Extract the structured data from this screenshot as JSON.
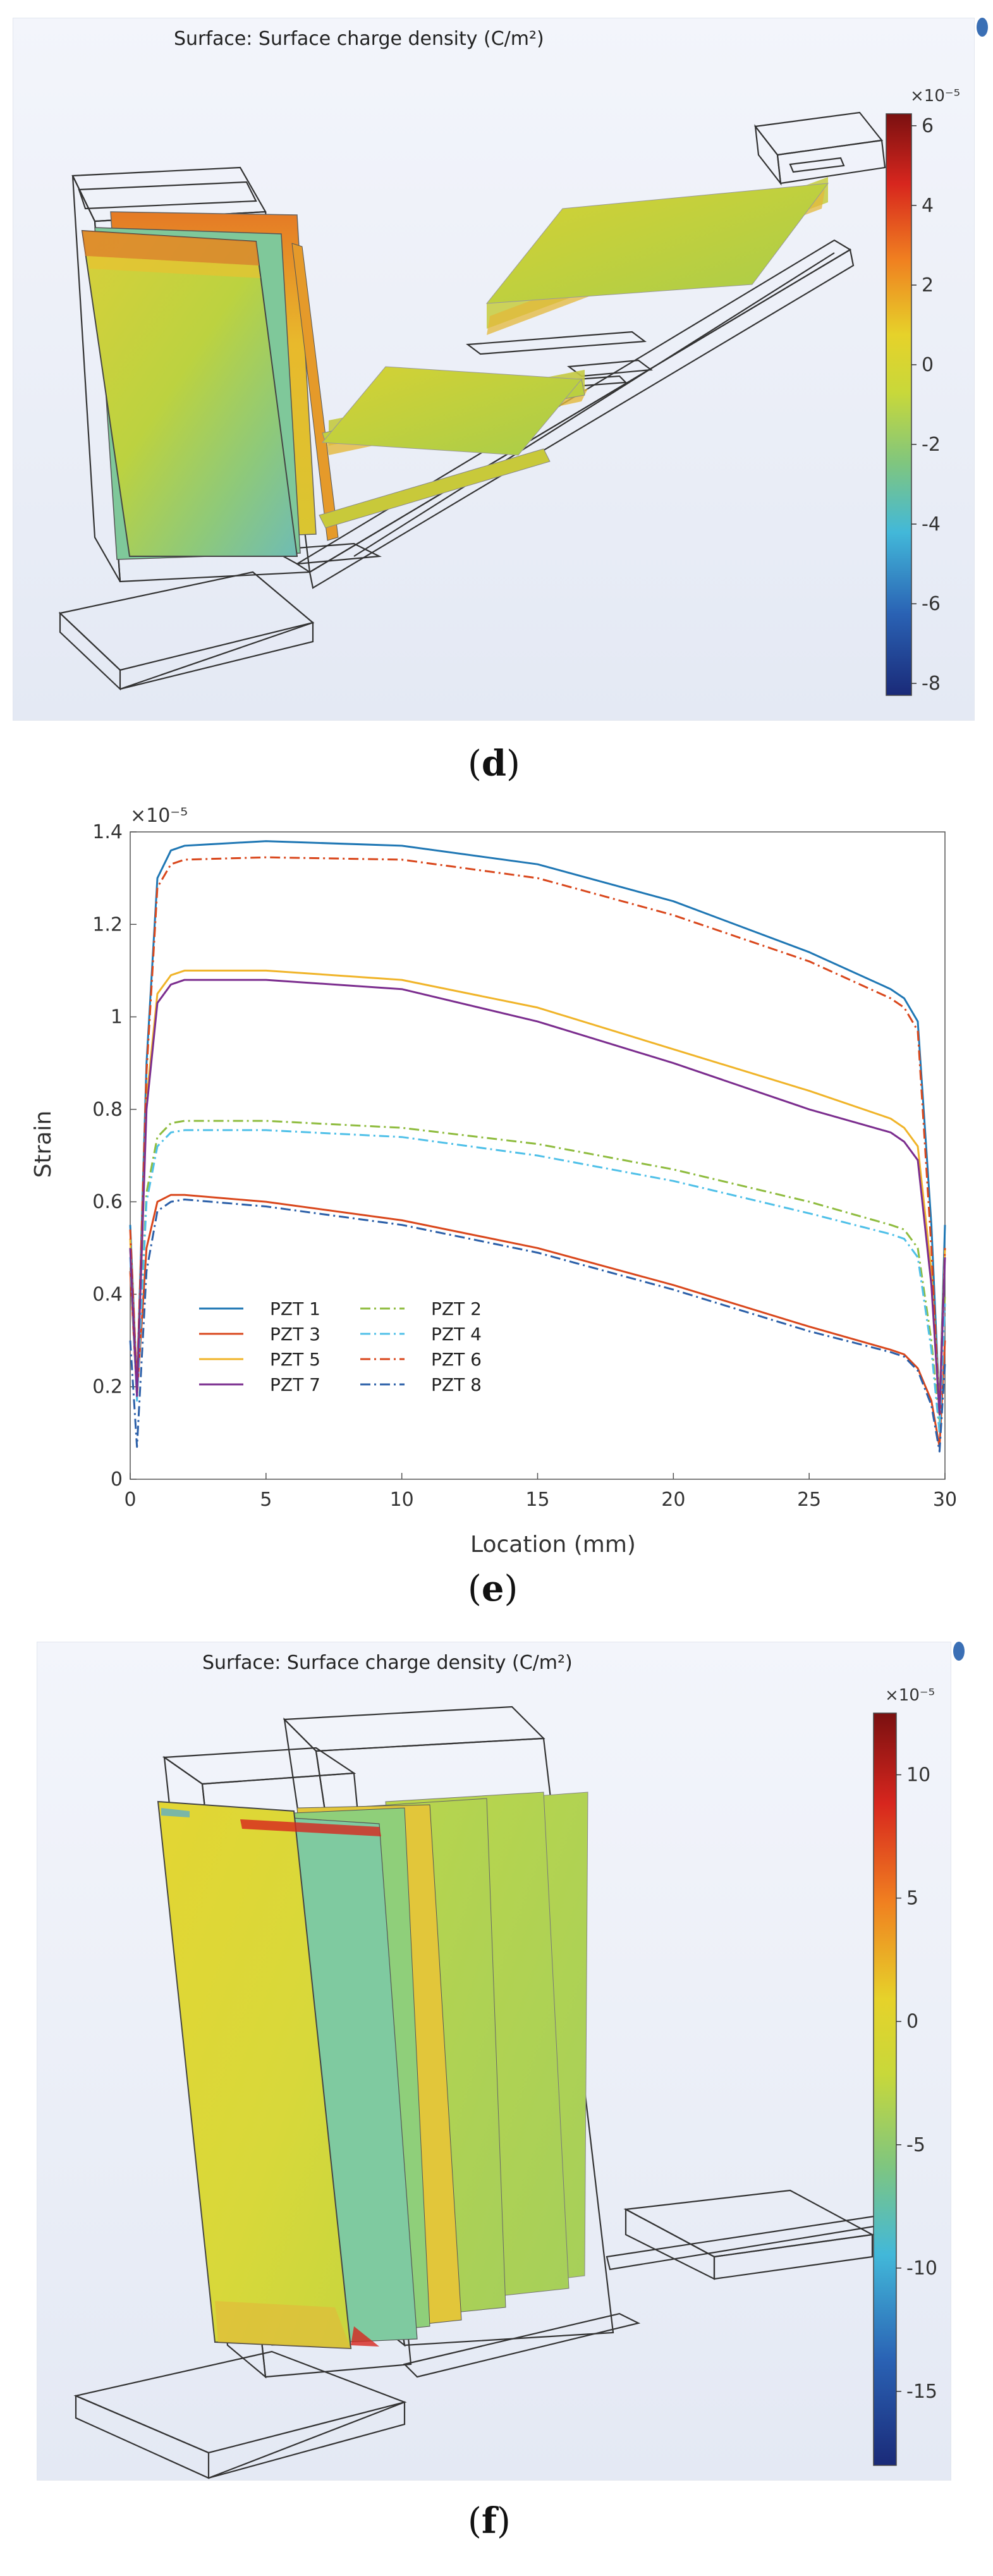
{
  "figure": {
    "panel_d": {
      "label": "d",
      "title": "Surface: Surface charge density (C/m²)",
      "colorbar": {
        "scale": "×10⁻⁵",
        "max_value": 6.3,
        "min_value": -8.3,
        "ticks": [
          "6",
          "4",
          "2",
          "0",
          "-2",
          "-4",
          "-6",
          "-8"
        ],
        "tick_values": [
          6,
          4,
          2,
          0,
          -2,
          -4,
          -6,
          -8
        ]
      }
    },
    "panel_e": {
      "label": "e"
    },
    "panel_f": {
      "label": "f",
      "title": "Surface: Surface charge density (C/m²)",
      "colorbar": {
        "scale": "×10⁻⁵",
        "max_value": 12.5,
        "min_value": -18,
        "ticks": [
          "10",
          "5",
          "0",
          "-5",
          "-10",
          "-15"
        ],
        "tick_values": [
          10,
          5,
          0,
          -5,
          -10,
          -15
        ]
      }
    }
  },
  "chart_data": [
    {
      "type": "line",
      "title": "",
      "xlabel": "Location (mm)",
      "ylabel": "Strain",
      "y_scale_note": "×10⁻⁵",
      "xlim": [
        0,
        30
      ],
      "ylim": [
        0,
        1.4
      ],
      "x_ticks": [
        0,
        5,
        10,
        15,
        20,
        25,
        30
      ],
      "y_ticks": [
        0,
        0.2,
        0.4,
        0.6,
        0.8,
        1,
        1.2,
        1.4
      ],
      "x_tick_labels": [
        "0",
        "5",
        "10",
        "15",
        "20",
        "25",
        "30"
      ],
      "y_tick_labels": [
        "0",
        "0.2",
        "0.4",
        "0.6",
        "0.8",
        "1",
        "1.2",
        "1.4"
      ],
      "grid": false,
      "legend_position": "bottom-left",
      "x": [
        0,
        0.25,
        0.6,
        1,
        1.5,
        2,
        5,
        10,
        15,
        20,
        25,
        28,
        28.5,
        29,
        29.5,
        29.8,
        30
      ],
      "series": [
        {
          "name": "PZT 1",
          "color": "#1f77b4",
          "dash": "solid",
          "values": [
            0.55,
            0.2,
            0.9,
            1.3,
            1.36,
            1.37,
            1.38,
            1.37,
            1.33,
            1.25,
            1.14,
            1.06,
            1.04,
            0.99,
            0.55,
            0.15,
            0.55
          ]
        },
        {
          "name": "PZT 2",
          "color": "#8fbc3f",
          "dash": "dashdot",
          "values": [
            0.5,
            0.18,
            0.62,
            0.74,
            0.77,
            0.775,
            0.775,
            0.76,
            0.725,
            0.67,
            0.6,
            0.55,
            0.54,
            0.5,
            0.3,
            0.12,
            0.4
          ]
        },
        {
          "name": "PZT 3",
          "color": "#d9471c",
          "dash": "solid",
          "values": [
            0.45,
            0.18,
            0.5,
            0.6,
            0.615,
            0.615,
            0.6,
            0.56,
            0.5,
            0.42,
            0.33,
            0.28,
            0.27,
            0.24,
            0.17,
            0.07,
            0.3
          ]
        },
        {
          "name": "PZT 4",
          "color": "#4fc0e8",
          "dash": "dashdot",
          "values": [
            0.48,
            0.17,
            0.6,
            0.72,
            0.75,
            0.755,
            0.755,
            0.74,
            0.7,
            0.645,
            0.575,
            0.53,
            0.52,
            0.48,
            0.28,
            0.1,
            0.38
          ]
        },
        {
          "name": "PZT 5",
          "color": "#f0b429",
          "dash": "solid",
          "values": [
            0.52,
            0.19,
            0.82,
            1.05,
            1.09,
            1.1,
            1.1,
            1.08,
            1.02,
            0.93,
            0.84,
            0.78,
            0.76,
            0.72,
            0.45,
            0.15,
            0.5
          ]
        },
        {
          "name": "PZT 6",
          "color": "#d9471c",
          "dash": "dashdot",
          "values": [
            0.54,
            0.2,
            0.88,
            1.28,
            1.33,
            1.34,
            1.345,
            1.34,
            1.3,
            1.22,
            1.12,
            1.04,
            1.02,
            0.97,
            0.5,
            0.14,
            0.5
          ]
        },
        {
          "name": "PZT 7",
          "color": "#7b2d8e",
          "dash": "solid",
          "values": [
            0.5,
            0.18,
            0.8,
            1.03,
            1.07,
            1.08,
            1.08,
            1.06,
            0.99,
            0.9,
            0.8,
            0.75,
            0.73,
            0.69,
            0.42,
            0.14,
            0.48
          ]
        },
        {
          "name": "PZT 8",
          "color": "#2b5fa8",
          "dash": "dashdot",
          "values": [
            0.3,
            0.07,
            0.45,
            0.58,
            0.6,
            0.605,
            0.59,
            0.55,
            0.49,
            0.41,
            0.32,
            0.275,
            0.265,
            0.235,
            0.16,
            0.06,
            0.25
          ]
        }
      ]
    }
  ]
}
